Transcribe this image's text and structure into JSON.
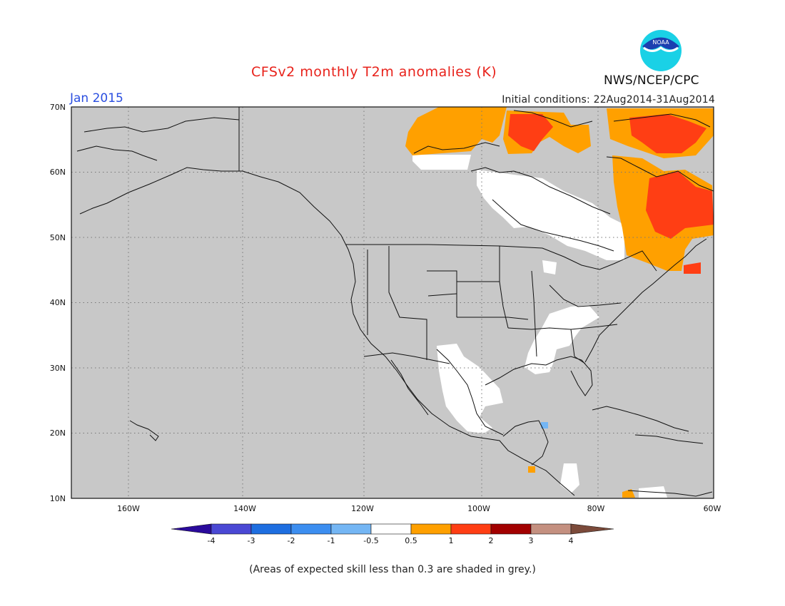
{
  "header": {
    "title": "CFSv2 monthly T2m anomalies (K)",
    "period": "Jan 2015",
    "initial_conditions": "Initial conditions: 22Aug2014-31Aug2014",
    "agency": "NWS/NCEP/CPC",
    "logo_text": "NOAA"
  },
  "map": {
    "lat_labels": [
      "70N",
      "60N",
      "50N",
      "40N",
      "30N",
      "20N",
      "10N"
    ],
    "lon_labels": [
      "160W",
      "140W",
      "120W",
      "100W",
      "80W",
      "60W"
    ],
    "land_color": "#c8c8c8",
    "grid": "dotted"
  },
  "colorbar": {
    "labels": [
      "-4",
      "-3",
      "-2",
      "-1",
      "-0.5",
      "0.5",
      "1",
      "2",
      "3",
      "4"
    ],
    "colors": [
      "#2a0a9c",
      "#4a48d4",
      "#1e6ee0",
      "#3c8ef0",
      "#74b6f4",
      "#ffffff",
      "#ffa000",
      "#ff3e14",
      "#a20000",
      "#c49080",
      "#7b4a3a"
    ]
  },
  "footer": {
    "caption": "(Areas of expected skill less than 0.3 are shaded in grey.)"
  }
}
